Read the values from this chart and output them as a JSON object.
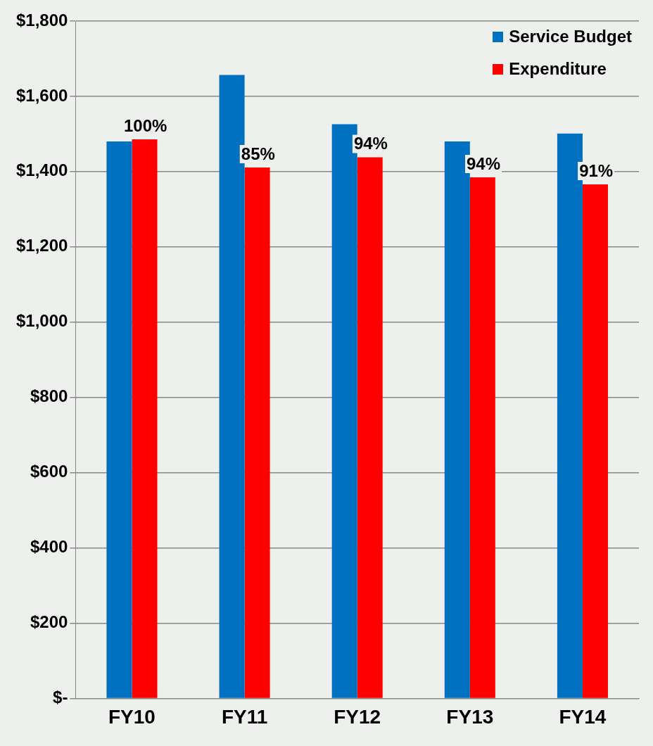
{
  "chart_data": {
    "type": "bar",
    "categories": [
      "FY10",
      "FY11",
      "FY12",
      "FY13",
      "FY14"
    ],
    "series": [
      {
        "name": "Service Budget",
        "color": "#0070c0",
        "values": [
          1480,
          1657,
          1526,
          1480,
          1501
        ]
      },
      {
        "name": "Expenditure",
        "color": "#ff0000",
        "values": [
          1486,
          1411,
          1438,
          1385,
          1366
        ]
      }
    ],
    "annotations": [
      {
        "text": "100%",
        "x": "FY10",
        "y": 1486
      },
      {
        "text": "85%",
        "x": "FY11",
        "y": 1411
      },
      {
        "text": "94%",
        "x": "FY12",
        "y": 1438
      },
      {
        "text": "94%",
        "x": "FY13",
        "y": 1385
      },
      {
        "text": "91%",
        "x": "FY14",
        "y": 1366
      }
    ],
    "ylim": [
      0,
      1800
    ],
    "yticks": [
      {
        "value": 0,
        "label": "$-"
      },
      {
        "value": 200,
        "label": "$200"
      },
      {
        "value": 400,
        "label": "$400"
      },
      {
        "value": 600,
        "label": "$600"
      },
      {
        "value": 800,
        "label": "$800"
      },
      {
        "value": 1000,
        "label": "$1,000"
      },
      {
        "value": 1200,
        "label": "$1,200"
      },
      {
        "value": 1400,
        "label": "$1,400"
      },
      {
        "value": 1600,
        "label": "$1,600"
      },
      {
        "value": 1800,
        "label": "$1,800"
      }
    ],
    "grid": "y",
    "legend": "top right"
  }
}
